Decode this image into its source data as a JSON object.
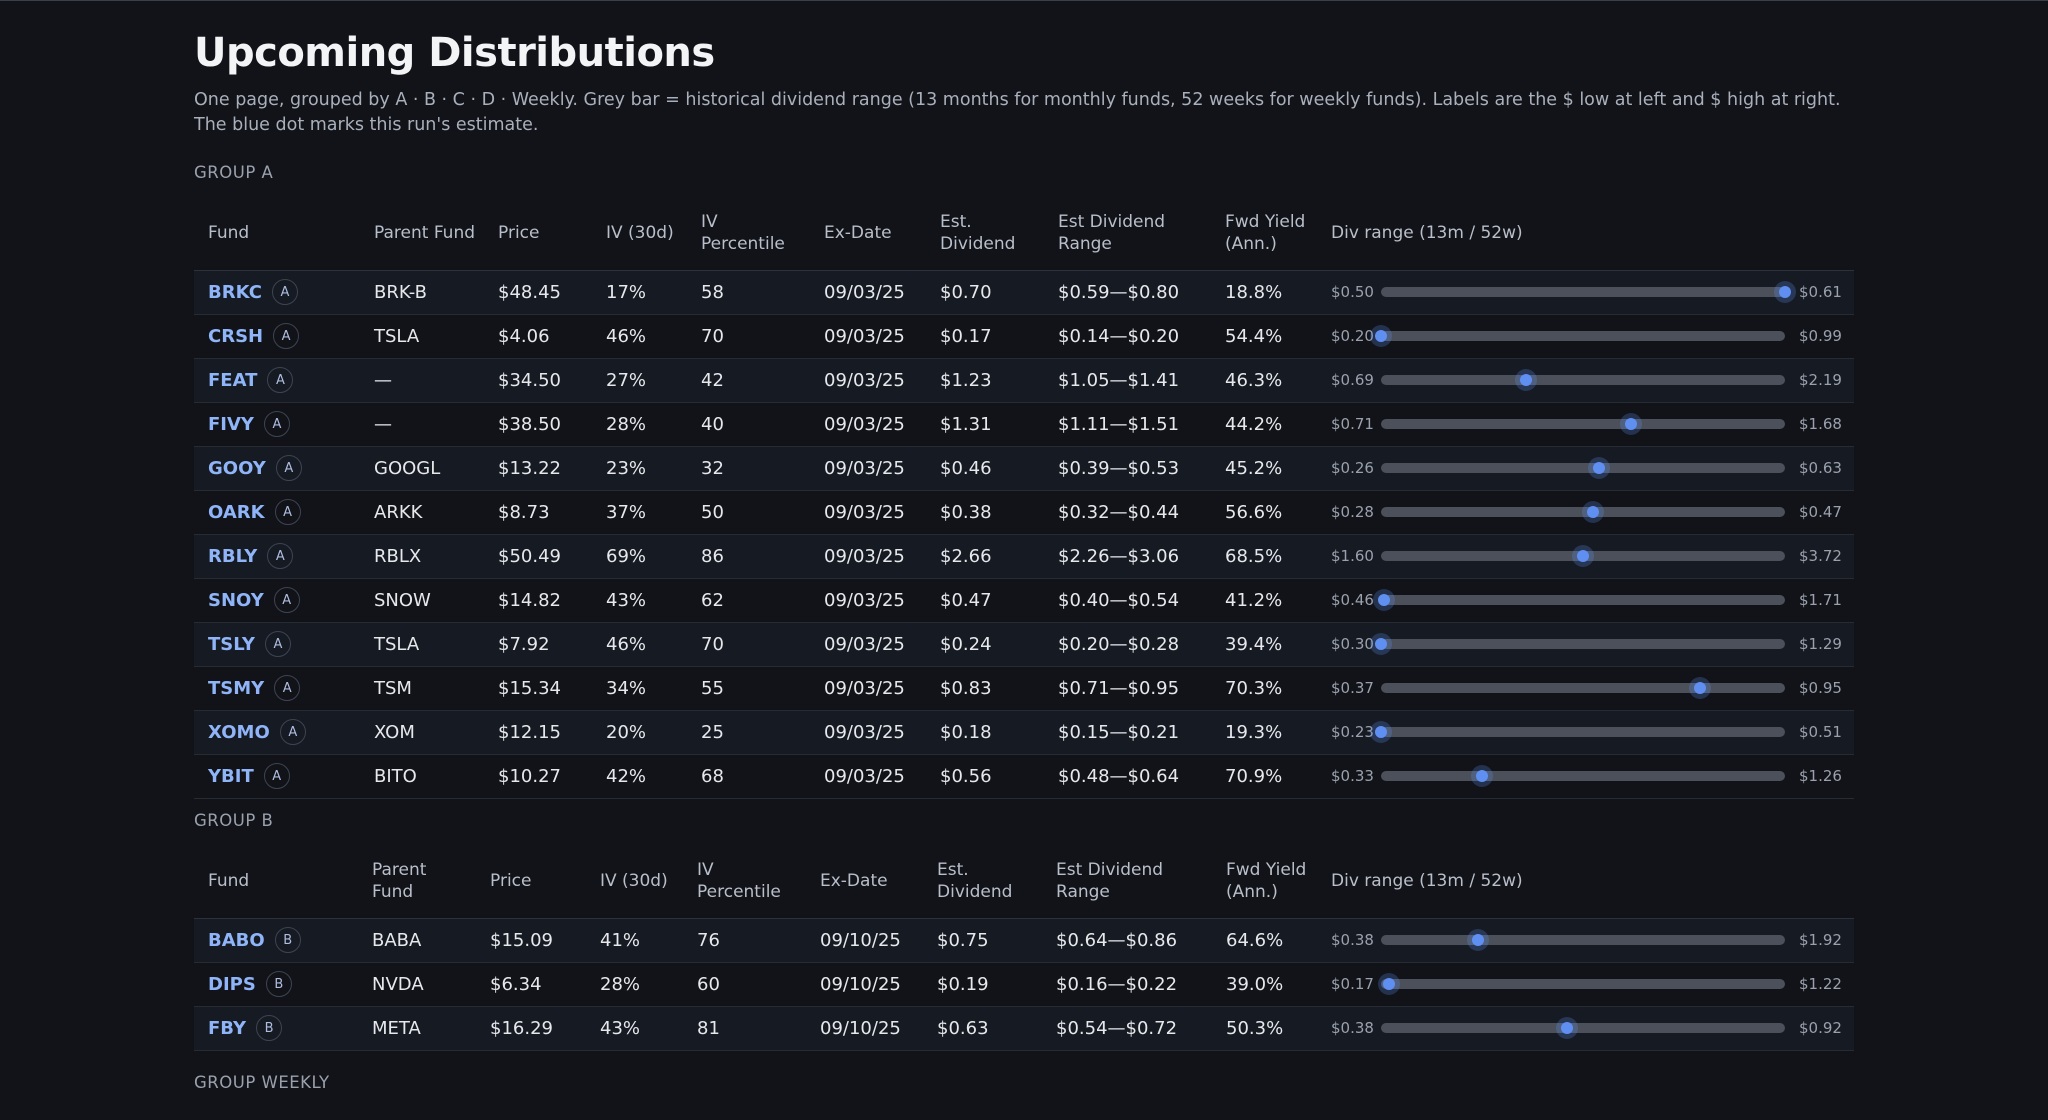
{
  "title": "Upcoming Distributions",
  "subtitle": "One page, grouped by A · B · C · D · Weekly. Grey bar = historical dividend range (13 months for monthly funds, 52 weeks for weekly funds). Labels are the $ low at left and $ high at right. The blue dot marks this run's estimate.",
  "headers": {
    "fund": "Fund",
    "parent_a": "Parent Fund",
    "parent_b_line1": "Parent",
    "parent_b_line2": "Fund",
    "price": "Price",
    "iv": "IV (30d)",
    "ivp_line1": "IV",
    "ivp_line2": "Percentile",
    "exdate": "Ex-Date",
    "est_line1": "Est.",
    "est_line2": "Dividend",
    "range_line1": "Est Dividend",
    "range_line2": "Range",
    "yield_line1": "Fwd Yield",
    "yield_line2": "(Ann.)",
    "div_range": "Div range (13m / 52w)"
  },
  "groups": [
    {
      "label": "GROUP A",
      "rows": [
        {
          "ticker": "BRKC",
          "badge": "A",
          "parent": "BRK-B",
          "price": "$48.45",
          "iv": "17%",
          "ivp": "58",
          "exdate": "09/03/25",
          "est": "$0.70",
          "range": "$0.59—$0.80",
          "yield": "18.8%",
          "low": "$0.50",
          "high": "$0.61",
          "pos": 1.0
        },
        {
          "ticker": "CRSH",
          "badge": "A",
          "parent": "TSLA",
          "price": "$4.06",
          "iv": "46%",
          "ivp": "70",
          "exdate": "09/03/25",
          "est": "$0.17",
          "range": "$0.14—$0.20",
          "yield": "54.4%",
          "low": "$0.20",
          "high": "$0.99",
          "pos": 0.0
        },
        {
          "ticker": "FEAT",
          "badge": "A",
          "parent": "—",
          "price": "$34.50",
          "iv": "27%",
          "ivp": "42",
          "exdate": "09/03/25",
          "est": "$1.23",
          "range": "$1.05—$1.41",
          "yield": "46.3%",
          "low": "$0.69",
          "high": "$2.19",
          "pos": 0.36
        },
        {
          "ticker": "FIVY",
          "badge": "A",
          "parent": "—",
          "price": "$38.50",
          "iv": "28%",
          "ivp": "40",
          "exdate": "09/03/25",
          "est": "$1.31",
          "range": "$1.11—$1.51",
          "yield": "44.2%",
          "low": "$0.71",
          "high": "$1.68",
          "pos": 0.62
        },
        {
          "ticker": "GOOY",
          "badge": "A",
          "parent": "GOOGL",
          "price": "$13.22",
          "iv": "23%",
          "ivp": "32",
          "exdate": "09/03/25",
          "est": "$0.46",
          "range": "$0.39—$0.53",
          "yield": "45.2%",
          "low": "$0.26",
          "high": "$0.63",
          "pos": 0.54
        },
        {
          "ticker": "OARK",
          "badge": "A",
          "parent": "ARKK",
          "price": "$8.73",
          "iv": "37%",
          "ivp": "50",
          "exdate": "09/03/25",
          "est": "$0.38",
          "range": "$0.32—$0.44",
          "yield": "56.6%",
          "low": "$0.28",
          "high": "$0.47",
          "pos": 0.525
        },
        {
          "ticker": "RBLY",
          "badge": "A",
          "parent": "RBLX",
          "price": "$50.49",
          "iv": "69%",
          "ivp": "86",
          "exdate": "09/03/25",
          "est": "$2.66",
          "range": "$2.26—$3.06",
          "yield": "68.5%",
          "low": "$1.60",
          "high": "$3.72",
          "pos": 0.5
        },
        {
          "ticker": "SNOY",
          "badge": "A",
          "parent": "SNOW",
          "price": "$14.82",
          "iv": "43%",
          "ivp": "62",
          "exdate": "09/03/25",
          "est": "$0.47",
          "range": "$0.40—$0.54",
          "yield": "41.2%",
          "low": "$0.46",
          "high": "$1.71",
          "pos": 0.008
        },
        {
          "ticker": "TSLY",
          "badge": "A",
          "parent": "TSLA",
          "price": "$7.92",
          "iv": "46%",
          "ivp": "70",
          "exdate": "09/03/25",
          "est": "$0.24",
          "range": "$0.20—$0.28",
          "yield": "39.4%",
          "low": "$0.30",
          "high": "$1.29",
          "pos": 0.0
        },
        {
          "ticker": "TSMY",
          "badge": "A",
          "parent": "TSM",
          "price": "$15.34",
          "iv": "34%",
          "ivp": "55",
          "exdate": "09/03/25",
          "est": "$0.83",
          "range": "$0.71—$0.95",
          "yield": "70.3%",
          "low": "$0.37",
          "high": "$0.95",
          "pos": 0.79
        },
        {
          "ticker": "XOMO",
          "badge": "A",
          "parent": "XOM",
          "price": "$12.15",
          "iv": "20%",
          "ivp": "25",
          "exdate": "09/03/25",
          "est": "$0.18",
          "range": "$0.15—$0.21",
          "yield": "19.3%",
          "low": "$0.23",
          "high": "$0.51",
          "pos": 0.0
        },
        {
          "ticker": "YBIT",
          "badge": "A",
          "parent": "BITO",
          "price": "$10.27",
          "iv": "42%",
          "ivp": "68",
          "exdate": "09/03/25",
          "est": "$0.56",
          "range": "$0.48—$0.64",
          "yield": "70.9%",
          "low": "$0.33",
          "high": "$1.26",
          "pos": 0.25
        }
      ]
    },
    {
      "label": "GROUP B",
      "rows": [
        {
          "ticker": "BABO",
          "badge": "B",
          "parent": "BABA",
          "price": "$15.09",
          "iv": "41%",
          "ivp": "76",
          "exdate": "09/10/25",
          "est": "$0.75",
          "range": "$0.64—$0.86",
          "yield": "64.6%",
          "low": "$0.38",
          "high": "$1.92",
          "pos": 0.24
        },
        {
          "ticker": "DIPS",
          "badge": "B",
          "parent": "NVDA",
          "price": "$6.34",
          "iv": "28%",
          "ivp": "60",
          "exdate": "09/10/25",
          "est": "$0.19",
          "range": "$0.16—$0.22",
          "yield": "39.0%",
          "low": "$0.17",
          "high": "$1.22",
          "pos": 0.02
        },
        {
          "ticker": "FBY",
          "badge": "B",
          "parent": "META",
          "price": "$16.29",
          "iv": "43%",
          "ivp": "81",
          "exdate": "09/10/25",
          "est": "$0.63",
          "range": "$0.54—$0.72",
          "yield": "50.3%",
          "low": "$0.38",
          "high": "$0.92",
          "pos": 0.46
        }
      ]
    },
    {
      "label": "GROUP WEEKLY",
      "rows": []
    }
  ],
  "colors": {
    "background": "#111318",
    "ticker": "#8fb4f8",
    "estimate_dot": "#5f8ff0",
    "range_bar": "#4b505b"
  }
}
